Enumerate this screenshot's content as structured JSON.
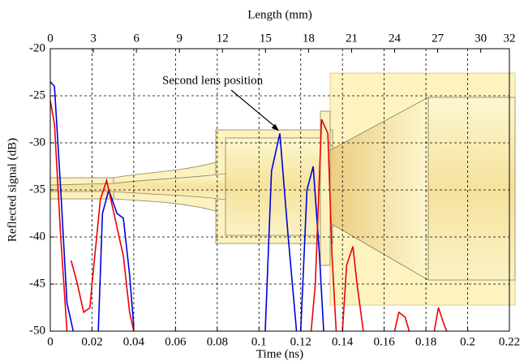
{
  "chart_data": {
    "type": "line",
    "x_label": "Time (ns)",
    "x2_label": "Length (mm)",
    "y_label": "Reflected signal (dB)",
    "xlim": [
      0,
      0.22
    ],
    "xticks": [
      0,
      0.02,
      0.04,
      0.06,
      0.08,
      0.1,
      0.12,
      0.14,
      0.16,
      0.18,
      0.2,
      0.22
    ],
    "x2lim": [
      0,
      32
    ],
    "x2ticks": [
      0,
      3,
      6,
      9,
      12,
      15,
      18,
      21,
      24,
      27,
      30,
      32
    ],
    "ylim": [
      -50,
      -20
    ],
    "yticks": [
      -20,
      -25,
      -30,
      -35,
      -40,
      -45,
      -50
    ],
    "grid": true,
    "annotation": {
      "text": "Second lens position",
      "x": 0.11,
      "y": -29
    },
    "series": [
      {
        "color": "#0000dd",
        "x": [
          0,
          0.002,
          0.005,
          0.008,
          0.011,
          null,
          0.023,
          0.025,
          0.028,
          0.032,
          0.035,
          0.038,
          0.04,
          null,
          0.103,
          0.106,
          0.11,
          0.114,
          0.118,
          null,
          0.12,
          0.123,
          0.126,
          0.129,
          0.131
        ],
        "values": [
          -23.5,
          -24,
          -35,
          -47,
          -50,
          null,
          -50,
          -37.5,
          -35,
          -37.5,
          -38,
          -44,
          -49.5,
          null,
          -50,
          -33,
          -29,
          -40,
          -50,
          null,
          -50,
          -35,
          -32.5,
          -42,
          -50
        ]
      },
      {
        "color": "#ee0000",
        "x": [
          0,
          0.002,
          0.005,
          0.008,
          null,
          0.01,
          0.013,
          0.016,
          0.019,
          0.02,
          0.024,
          0.027,
          0.031,
          0.035,
          0.038,
          0.04,
          null,
          0.125,
          0.127,
          0.13,
          0.133,
          0.135,
          0.137,
          null,
          0.14,
          0.142,
          0.145,
          0.147,
          0.15,
          null,
          0.165,
          0.167,
          0.17,
          0.172,
          null,
          0.184,
          0.186,
          0.189,
          0.19
        ],
        "values": [
          -25.5,
          -28,
          -40,
          -50,
          null,
          -42.5,
          -45,
          -48,
          -47.5,
          -45,
          -36,
          -34,
          -38,
          -42,
          -48,
          -50,
          null,
          -50,
          -45,
          -27.5,
          -29,
          -42,
          -50,
          null,
          -50,
          -43,
          -41,
          -45,
          -50,
          null,
          -50,
          -48,
          -48.5,
          -50,
          null,
          -50,
          -47.5,
          -49.5,
          -50
        ]
      }
    ]
  }
}
